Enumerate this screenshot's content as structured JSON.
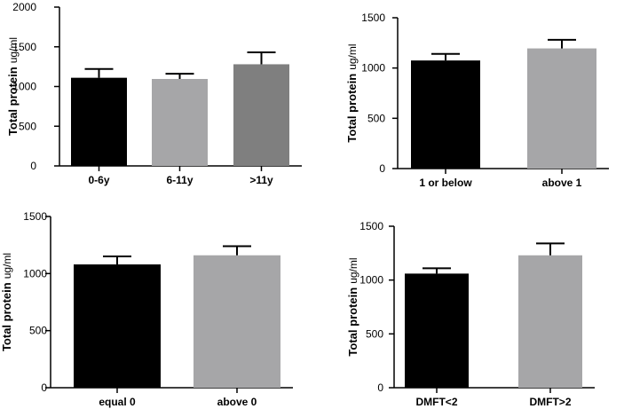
{
  "chart_data": [
    {
      "type": "bar",
      "ylabel": "Total protein",
      "ylabel_unit": "ug/ml",
      "ylim": [
        0,
        2000
      ],
      "yticks": [
        0,
        500,
        1000,
        1500,
        2000
      ],
      "categories": [
        "0-6y",
        "6-11y",
        ">11y"
      ],
      "values": [
        1110,
        1095,
        1280
      ],
      "errors": [
        110,
        65,
        150
      ],
      "colors": [
        "#000000",
        "#a6a6a8",
        "#7f7f7f"
      ]
    },
    {
      "type": "bar",
      "ylabel": "Total protein",
      "ylabel_unit": "ug/ml",
      "ylim": [
        0,
        1500
      ],
      "yticks": [
        0,
        500,
        1000,
        1500
      ],
      "categories": [
        "1 or below",
        "above 1"
      ],
      "values": [
        1075,
        1195
      ],
      "errors": [
        65,
        85
      ],
      "colors": [
        "#000000",
        "#a6a6a8"
      ]
    },
    {
      "type": "bar",
      "ylabel": "Total protein",
      "ylabel_unit": "ug/ml",
      "ylim": [
        0,
        1500
      ],
      "yticks": [
        0,
        500,
        1000,
        1500
      ],
      "categories": [
        "equal 0",
        "above 0"
      ],
      "values": [
        1080,
        1160
      ],
      "errors": [
        70,
        80
      ],
      "colors": [
        "#000000",
        "#a6a6a8"
      ]
    },
    {
      "type": "bar",
      "ylabel": "Total protein",
      "ylabel_unit": "ug/ml",
      "ylim": [
        0,
        1500
      ],
      "yticks": [
        0,
        500,
        1000,
        1500
      ],
      "categories": [
        "DMFT<2",
        "DMFT>2"
      ],
      "values": [
        1060,
        1230
      ],
      "errors": [
        50,
        110
      ],
      "colors": [
        "#000000",
        "#a6a6a8"
      ]
    }
  ]
}
